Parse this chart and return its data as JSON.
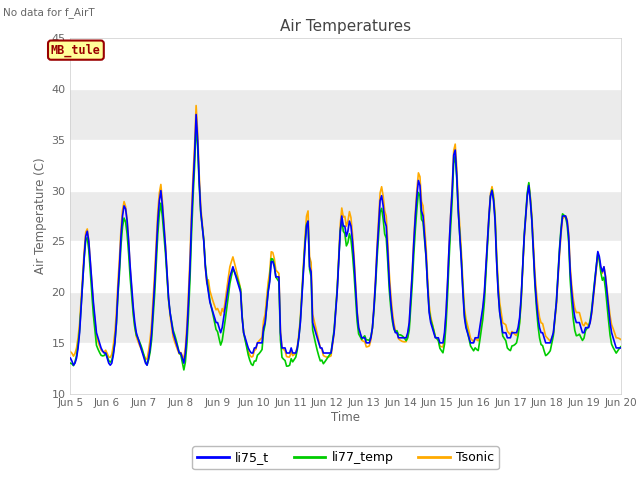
{
  "title": "Air Temperatures",
  "top_left_text": "No data for f_AirT",
  "ylabel": "Air Temperature (C)",
  "xlabel": "Time",
  "ylim": [
    10,
    45
  ],
  "yticks": [
    10,
    15,
    20,
    25,
    30,
    35,
    40,
    45
  ],
  "fig_bg": "#ffffff",
  "plot_bg": "#ffffff",
  "legend_labels": [
    "li75_t",
    "li77_temp",
    "Tsonic"
  ],
  "legend_colors": [
    "#0000ff",
    "#00cc00",
    "#ffaa00"
  ],
  "annotation_text": "MB_tule",
  "annotation_bg": "#ffff99",
  "annotation_border": "#990000",
  "xtick_labels": [
    "Jun 5",
    "Jun 6",
    "Jun 7",
    "Jun 8",
    "Jun 9",
    "Jun 10",
    "Jun 11",
    "Jun 12",
    "Jun 13",
    "Jun 14",
    "Jun 15",
    "Jun 16",
    "Jun 17",
    "Jun 18",
    "Jun 19",
    "Jun 20"
  ],
  "grid_color": "#dddddd",
  "tick_color": "#666666",
  "hours_per_day": 24,
  "num_days": 15,
  "li75_t": [
    13.5,
    13.2,
    12.8,
    13.0,
    13.5,
    14.5,
    16.0,
    18.5,
    21.0,
    23.5,
    25.5,
    26.0,
    25.0,
    23.0,
    21.0,
    19.0,
    17.5,
    16.0,
    15.5,
    15.0,
    14.5,
    14.2,
    14.0,
    14.0,
    13.5,
    13.0,
    12.8,
    13.0,
    13.8,
    15.0,
    17.0,
    20.0,
    22.5,
    25.5,
    27.5,
    28.5,
    28.2,
    27.0,
    25.0,
    22.5,
    20.5,
    18.5,
    17.0,
    16.0,
    15.5,
    15.0,
    14.5,
    14.0,
    13.5,
    13.0,
    12.8,
    13.5,
    14.5,
    16.0,
    18.5,
    21.0,
    24.0,
    27.0,
    29.0,
    30.0,
    28.5,
    26.5,
    24.5,
    22.0,
    19.5,
    18.0,
    17.0,
    16.0,
    15.5,
    15.0,
    14.5,
    14.0,
    14.0,
    13.5,
    13.0,
    14.0,
    16.0,
    19.0,
    22.5,
    27.0,
    30.5,
    33.5,
    37.5,
    35.0,
    31.0,
    28.0,
    26.5,
    25.0,
    22.5,
    21.0,
    20.0,
    19.0,
    18.5,
    18.0,
    17.5,
    17.0,
    17.0,
    16.5,
    16.0,
    16.5,
    17.5,
    18.5,
    19.5,
    20.5,
    21.5,
    22.0,
    22.5,
    22.0,
    21.5,
    21.0,
    20.5,
    20.0,
    17.5,
    16.0,
    15.5,
    15.0,
    14.5,
    14.2,
    14.0,
    14.0,
    14.5,
    14.5,
    15.0,
    15.0,
    15.0,
    15.0,
    16.5,
    17.0,
    18.5,
    20.0,
    21.0,
    23.0,
    23.0,
    22.5,
    21.5,
    21.5,
    21.5,
    16.0,
    14.5,
    14.5,
    14.5,
    14.0,
    14.0,
    14.0,
    14.5,
    14.0,
    14.0,
    14.0,
    14.5,
    15.5,
    17.0,
    19.5,
    22.0,
    24.5,
    26.5,
    27.0,
    22.5,
    22.0,
    17.0,
    16.5,
    16.0,
    15.5,
    15.0,
    14.5,
    14.5,
    14.0,
    14.0,
    14.0,
    14.0,
    14.0,
    14.0,
    15.0,
    16.0,
    18.0,
    20.0,
    23.0,
    26.0,
    27.5,
    26.5,
    26.5,
    25.5,
    26.0,
    27.0,
    26.5,
    25.0,
    23.0,
    20.5,
    18.0,
    16.5,
    16.0,
    15.5,
    15.5,
    15.5,
    15.0,
    15.0,
    15.0,
    15.5,
    16.5,
    18.5,
    21.0,
    24.0,
    26.5,
    29.0,
    29.5,
    28.5,
    27.0,
    26.5,
    24.0,
    21.0,
    19.0,
    17.5,
    16.5,
    16.0,
    16.0,
    15.5,
    15.5,
    15.5,
    15.5,
    15.5,
    15.5,
    16.0,
    17.0,
    19.5,
    22.0,
    25.0,
    27.5,
    29.5,
    31.0,
    30.5,
    28.0,
    27.5,
    25.5,
    23.5,
    20.5,
    18.0,
    17.0,
    16.5,
    16.0,
    15.5,
    15.5,
    15.5,
    15.0,
    15.0,
    15.0,
    16.0,
    18.0,
    21.0,
    24.5,
    27.5,
    30.0,
    33.5,
    34.0,
    31.5,
    28.0,
    25.5,
    23.0,
    20.0,
    17.5,
    16.5,
    16.0,
    15.5,
    15.0,
    15.0,
    15.0,
    15.5,
    15.5,
    15.5,
    16.5,
    17.5,
    18.5,
    20.0,
    22.5,
    25.0,
    27.5,
    29.5,
    30.0,
    29.0,
    27.0,
    23.0,
    20.0,
    18.0,
    17.0,
    16.0,
    16.0,
    16.0,
    15.5,
    15.5,
    15.5,
    16.0,
    16.0,
    16.0,
    16.0,
    16.5,
    17.5,
    19.5,
    22.5,
    25.5,
    27.5,
    29.5,
    30.5,
    29.0,
    27.0,
    24.0,
    21.0,
    19.0,
    17.5,
    16.5,
    16.0,
    16.0,
    15.5,
    15.0,
    15.0,
    15.0,
    15.0,
    15.5,
    16.0,
    17.5,
    19.0,
    21.5,
    24.0,
    26.0,
    27.5,
    27.5,
    27.5,
    27.0,
    25.5,
    22.0,
    20.0,
    18.5,
    17.5,
    17.0,
    17.0,
    17.0,
    16.5,
    16.0,
    16.0,
    16.5,
    16.5,
    16.5,
    17.0,
    18.0,
    19.5,
    21.0,
    22.5,
    24.0,
    23.5,
    22.5,
    22.0,
    22.5,
    21.5,
    20.0,
    18.5,
    17.0,
    16.0,
    15.5,
    15.0,
    14.5,
    14.5,
    14.5,
    14.5
  ]
}
